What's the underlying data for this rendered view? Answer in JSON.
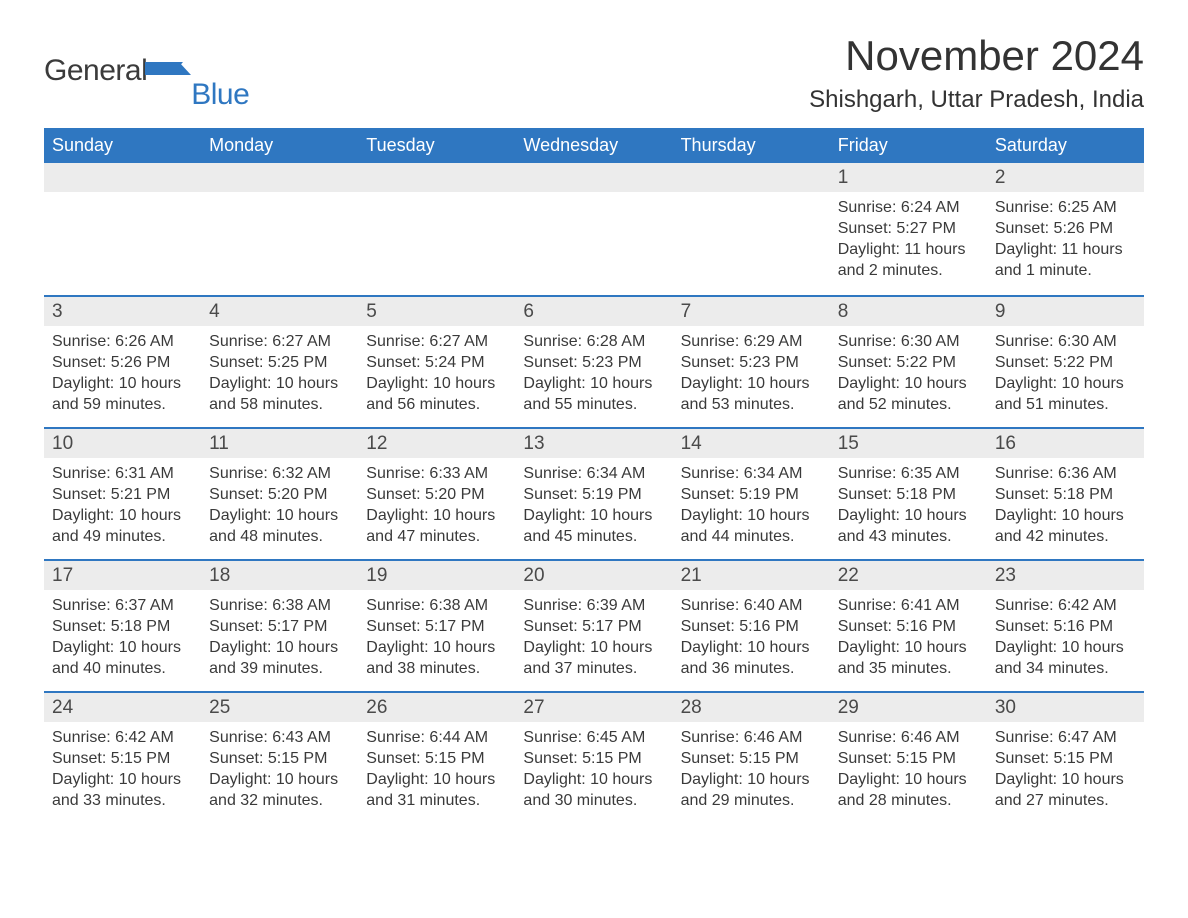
{
  "brand": {
    "word1": "General",
    "word2": "Blue",
    "flag_color": "#2f77c1"
  },
  "title": "November 2024",
  "location": "Shishgarh, Uttar Pradesh, India",
  "colors": {
    "header_bg": "#2f77c1",
    "header_text": "#ffffff",
    "daynum_bg": "#ececec",
    "row_border": "#2f77c1",
    "body_text": "#3a3a3a",
    "page_bg": "#ffffff"
  },
  "typography": {
    "title_fontsize": 42,
    "location_fontsize": 24,
    "dow_fontsize": 18,
    "daynum_fontsize": 19,
    "body_fontsize": 16
  },
  "calendar": {
    "columns": [
      "Sunday",
      "Monday",
      "Tuesday",
      "Wednesday",
      "Thursday",
      "Friday",
      "Saturday"
    ],
    "weeks": [
      [
        null,
        null,
        null,
        null,
        null,
        {
          "n": "1",
          "sunrise": "Sunrise: 6:24 AM",
          "sunset": "Sunset: 5:27 PM",
          "day1": "Daylight: 11 hours",
          "day2": "and 2 minutes."
        },
        {
          "n": "2",
          "sunrise": "Sunrise: 6:25 AM",
          "sunset": "Sunset: 5:26 PM",
          "day1": "Daylight: 11 hours",
          "day2": "and 1 minute."
        }
      ],
      [
        {
          "n": "3",
          "sunrise": "Sunrise: 6:26 AM",
          "sunset": "Sunset: 5:26 PM",
          "day1": "Daylight: 10 hours",
          "day2": "and 59 minutes."
        },
        {
          "n": "4",
          "sunrise": "Sunrise: 6:27 AM",
          "sunset": "Sunset: 5:25 PM",
          "day1": "Daylight: 10 hours",
          "day2": "and 58 minutes."
        },
        {
          "n": "5",
          "sunrise": "Sunrise: 6:27 AM",
          "sunset": "Sunset: 5:24 PM",
          "day1": "Daylight: 10 hours",
          "day2": "and 56 minutes."
        },
        {
          "n": "6",
          "sunrise": "Sunrise: 6:28 AM",
          "sunset": "Sunset: 5:23 PM",
          "day1": "Daylight: 10 hours",
          "day2": "and 55 minutes."
        },
        {
          "n": "7",
          "sunrise": "Sunrise: 6:29 AM",
          "sunset": "Sunset: 5:23 PM",
          "day1": "Daylight: 10 hours",
          "day2": "and 53 minutes."
        },
        {
          "n": "8",
          "sunrise": "Sunrise: 6:30 AM",
          "sunset": "Sunset: 5:22 PM",
          "day1": "Daylight: 10 hours",
          "day2": "and 52 minutes."
        },
        {
          "n": "9",
          "sunrise": "Sunrise: 6:30 AM",
          "sunset": "Sunset: 5:22 PM",
          "day1": "Daylight: 10 hours",
          "day2": "and 51 minutes."
        }
      ],
      [
        {
          "n": "10",
          "sunrise": "Sunrise: 6:31 AM",
          "sunset": "Sunset: 5:21 PM",
          "day1": "Daylight: 10 hours",
          "day2": "and 49 minutes."
        },
        {
          "n": "11",
          "sunrise": "Sunrise: 6:32 AM",
          "sunset": "Sunset: 5:20 PM",
          "day1": "Daylight: 10 hours",
          "day2": "and 48 minutes."
        },
        {
          "n": "12",
          "sunrise": "Sunrise: 6:33 AM",
          "sunset": "Sunset: 5:20 PM",
          "day1": "Daylight: 10 hours",
          "day2": "and 47 minutes."
        },
        {
          "n": "13",
          "sunrise": "Sunrise: 6:34 AM",
          "sunset": "Sunset: 5:19 PM",
          "day1": "Daylight: 10 hours",
          "day2": "and 45 minutes."
        },
        {
          "n": "14",
          "sunrise": "Sunrise: 6:34 AM",
          "sunset": "Sunset: 5:19 PM",
          "day1": "Daylight: 10 hours",
          "day2": "and 44 minutes."
        },
        {
          "n": "15",
          "sunrise": "Sunrise: 6:35 AM",
          "sunset": "Sunset: 5:18 PM",
          "day1": "Daylight: 10 hours",
          "day2": "and 43 minutes."
        },
        {
          "n": "16",
          "sunrise": "Sunrise: 6:36 AM",
          "sunset": "Sunset: 5:18 PM",
          "day1": "Daylight: 10 hours",
          "day2": "and 42 minutes."
        }
      ],
      [
        {
          "n": "17",
          "sunrise": "Sunrise: 6:37 AM",
          "sunset": "Sunset: 5:18 PM",
          "day1": "Daylight: 10 hours",
          "day2": "and 40 minutes."
        },
        {
          "n": "18",
          "sunrise": "Sunrise: 6:38 AM",
          "sunset": "Sunset: 5:17 PM",
          "day1": "Daylight: 10 hours",
          "day2": "and 39 minutes."
        },
        {
          "n": "19",
          "sunrise": "Sunrise: 6:38 AM",
          "sunset": "Sunset: 5:17 PM",
          "day1": "Daylight: 10 hours",
          "day2": "and 38 minutes."
        },
        {
          "n": "20",
          "sunrise": "Sunrise: 6:39 AM",
          "sunset": "Sunset: 5:17 PM",
          "day1": "Daylight: 10 hours",
          "day2": "and 37 minutes."
        },
        {
          "n": "21",
          "sunrise": "Sunrise: 6:40 AM",
          "sunset": "Sunset: 5:16 PM",
          "day1": "Daylight: 10 hours",
          "day2": "and 36 minutes."
        },
        {
          "n": "22",
          "sunrise": "Sunrise: 6:41 AM",
          "sunset": "Sunset: 5:16 PM",
          "day1": "Daylight: 10 hours",
          "day2": "and 35 minutes."
        },
        {
          "n": "23",
          "sunrise": "Sunrise: 6:42 AM",
          "sunset": "Sunset: 5:16 PM",
          "day1": "Daylight: 10 hours",
          "day2": "and 34 minutes."
        }
      ],
      [
        {
          "n": "24",
          "sunrise": "Sunrise: 6:42 AM",
          "sunset": "Sunset: 5:15 PM",
          "day1": "Daylight: 10 hours",
          "day2": "and 33 minutes."
        },
        {
          "n": "25",
          "sunrise": "Sunrise: 6:43 AM",
          "sunset": "Sunset: 5:15 PM",
          "day1": "Daylight: 10 hours",
          "day2": "and 32 minutes."
        },
        {
          "n": "26",
          "sunrise": "Sunrise: 6:44 AM",
          "sunset": "Sunset: 5:15 PM",
          "day1": "Daylight: 10 hours",
          "day2": "and 31 minutes."
        },
        {
          "n": "27",
          "sunrise": "Sunrise: 6:45 AM",
          "sunset": "Sunset: 5:15 PM",
          "day1": "Daylight: 10 hours",
          "day2": "and 30 minutes."
        },
        {
          "n": "28",
          "sunrise": "Sunrise: 6:46 AM",
          "sunset": "Sunset: 5:15 PM",
          "day1": "Daylight: 10 hours",
          "day2": "and 29 minutes."
        },
        {
          "n": "29",
          "sunrise": "Sunrise: 6:46 AM",
          "sunset": "Sunset: 5:15 PM",
          "day1": "Daylight: 10 hours",
          "day2": "and 28 minutes."
        },
        {
          "n": "30",
          "sunrise": "Sunrise: 6:47 AM",
          "sunset": "Sunset: 5:15 PM",
          "day1": "Daylight: 10 hours",
          "day2": "and 27 minutes."
        }
      ]
    ]
  }
}
